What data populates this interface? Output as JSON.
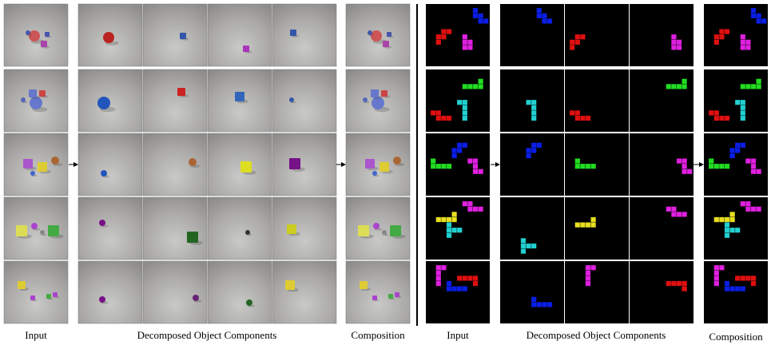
{
  "left": {
    "labels": {
      "input": "Input",
      "components": "Decomposed Object Components",
      "composition": "Composition"
    }
  },
  "right": {
    "labels": {
      "input": "Input",
      "components": "Decomposed Object Components",
      "composition": "Composition"
    }
  }
}
